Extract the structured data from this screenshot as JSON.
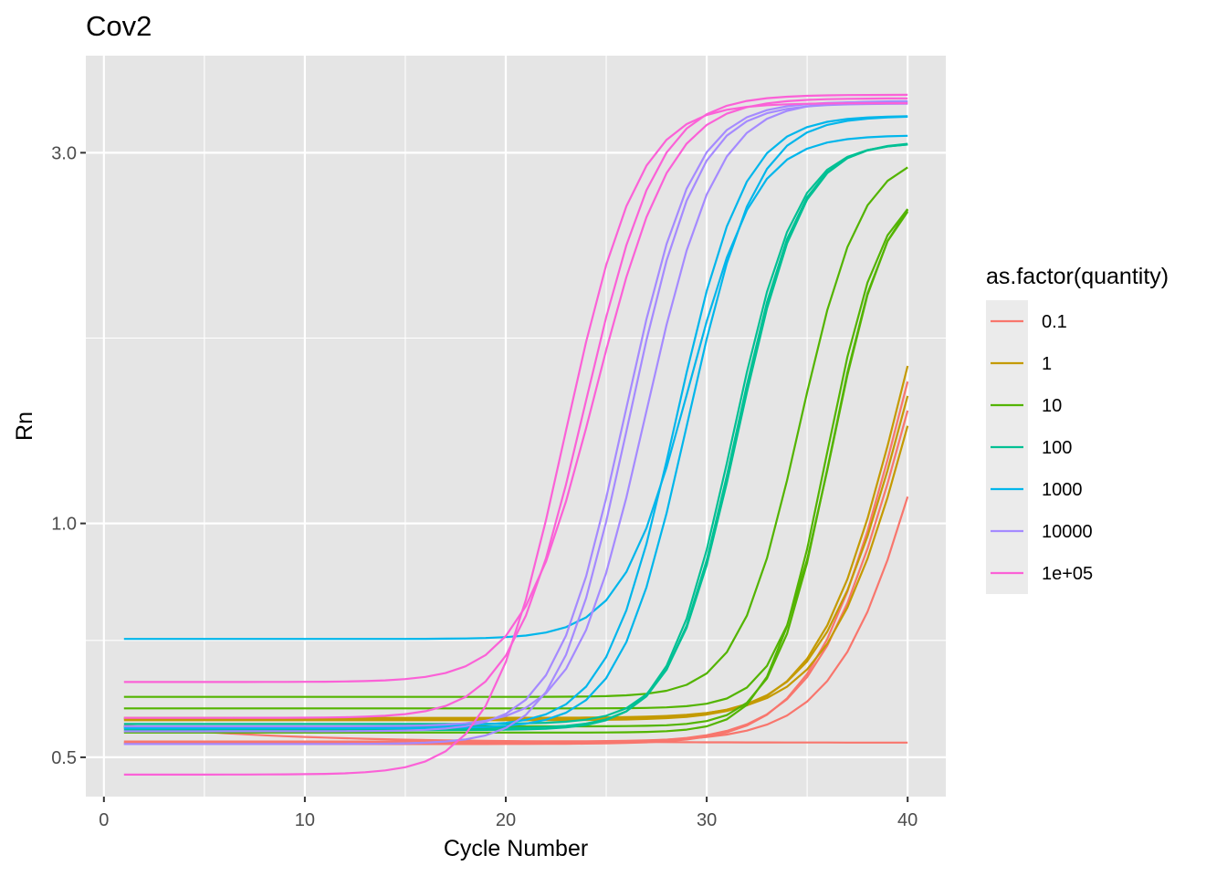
{
  "chart_data": {
    "type": "line",
    "title": "Cov2",
    "xlabel": "Cycle Number",
    "ylabel": "Rn",
    "xlim": [
      -0.9,
      41.9
    ],
    "ylim": [
      0.445,
      4.0
    ],
    "yscale": "log10",
    "x_ticks": [
      0,
      10,
      20,
      30,
      40
    ],
    "x_tick_labels": [
      "0",
      "10",
      "20",
      "30",
      "40"
    ],
    "y_ticks": [
      0.5,
      1.0,
      3.0
    ],
    "y_tick_labels": [
      "0.5",
      "1.0",
      "3.0"
    ],
    "y_minor_ticks": [
      0.707,
      1.732
    ],
    "x_minor_ticks": [
      5,
      15,
      25,
      35
    ],
    "grid": true,
    "panel_background": "#e5e5e5",
    "legend": {
      "title": "as.factor(quantity)",
      "position": "right",
      "entries": [
        "0.1",
        "1",
        "10",
        "100",
        "1000",
        "10000",
        "1e+05"
      ]
    },
    "colors": {
      "0.1": "#F8766D",
      "1": "#C49A00",
      "10": "#53B400",
      "100": "#00C094",
      "1000": "#00B6EB",
      "10000": "#A58AFF",
      "1e+05": "#FB61D7"
    },
    "curve_model": "y = base + A / (1 + exp(-(x - mid) / k)); x = 1..40",
    "curves": [
      {
        "group": "0.1",
        "base": 0.55,
        "A": 0.0,
        "mid": 0,
        "k": 2.0,
        "decline": 0.028
      },
      {
        "group": "0.1",
        "base": 0.52,
        "A": 4.0,
        "mid": 42.3,
        "k": 2.1
      },
      {
        "group": "0.1",
        "base": 0.522,
        "A": 4.0,
        "mid": 42.8,
        "k": 2.2
      },
      {
        "group": "0.1",
        "base": 0.524,
        "A": 4.0,
        "mid": 44.0,
        "k": 2.2
      },
      {
        "group": "1",
        "base": 0.558,
        "A": 4.0,
        "mid": 42.1,
        "k": 2.0
      },
      {
        "group": "1",
        "base": 0.56,
        "A": 4.0,
        "mid": 42.6,
        "k": 2.1
      },
      {
        "group": "1",
        "base": 0.562,
        "A": 4.0,
        "mid": 43.0,
        "k": 2.1
      },
      {
        "group": "10",
        "base": 0.548,
        "A": 2.2,
        "mid": 37.2,
        "k": 1.3
      },
      {
        "group": "10",
        "base": 0.578,
        "A": 2.2,
        "mid": 37.3,
        "k": 1.3
      },
      {
        "group": "10",
        "base": 0.598,
        "A": 2.4,
        "mid": 35.8,
        "k": 1.45
      },
      {
        "group": "10",
        "base": 0.538,
        "A": 2.2,
        "mid": 37.0,
        "k": 1.3
      },
      {
        "group": "100",
        "base": 0.542,
        "A": 2.55,
        "mid": 32.6,
        "k": 1.5
      },
      {
        "group": "100",
        "base": 0.545,
        "A": 2.55,
        "mid": 32.75,
        "k": 1.5
      },
      {
        "group": "100",
        "base": 0.552,
        "A": 2.55,
        "mid": 32.85,
        "k": 1.5
      },
      {
        "group": "1000",
        "base": 0.548,
        "A": 2.8,
        "mid": 29.9,
        "k": 1.6
      },
      {
        "group": "1000",
        "base": 0.545,
        "A": 2.8,
        "mid": 30.5,
        "k": 1.6
      },
      {
        "group": "1000",
        "base": 0.71,
        "A": 2.45,
        "mid": 30.3,
        "k": 1.6
      },
      {
        "group": "10000",
        "base": 0.52,
        "A": 2.95,
        "mid": 27.6,
        "k": 1.6
      },
      {
        "group": "10000",
        "base": 0.54,
        "A": 2.95,
        "mid": 27.4,
        "k": 1.6
      },
      {
        "group": "10000",
        "base": 0.548,
        "A": 2.95,
        "mid": 28.5,
        "k": 1.65
      },
      {
        "group": "1e+05",
        "base": 0.475,
        "A": 3.0,
        "mid": 24.6,
        "k": 1.7
      },
      {
        "group": "1e+05",
        "base": 0.562,
        "A": 3.0,
        "mid": 25.5,
        "k": 1.7
      },
      {
        "group": "1e+05",
        "base": 0.625,
        "A": 2.9,
        "mid": 26.0,
        "k": 1.75
      }
    ]
  }
}
